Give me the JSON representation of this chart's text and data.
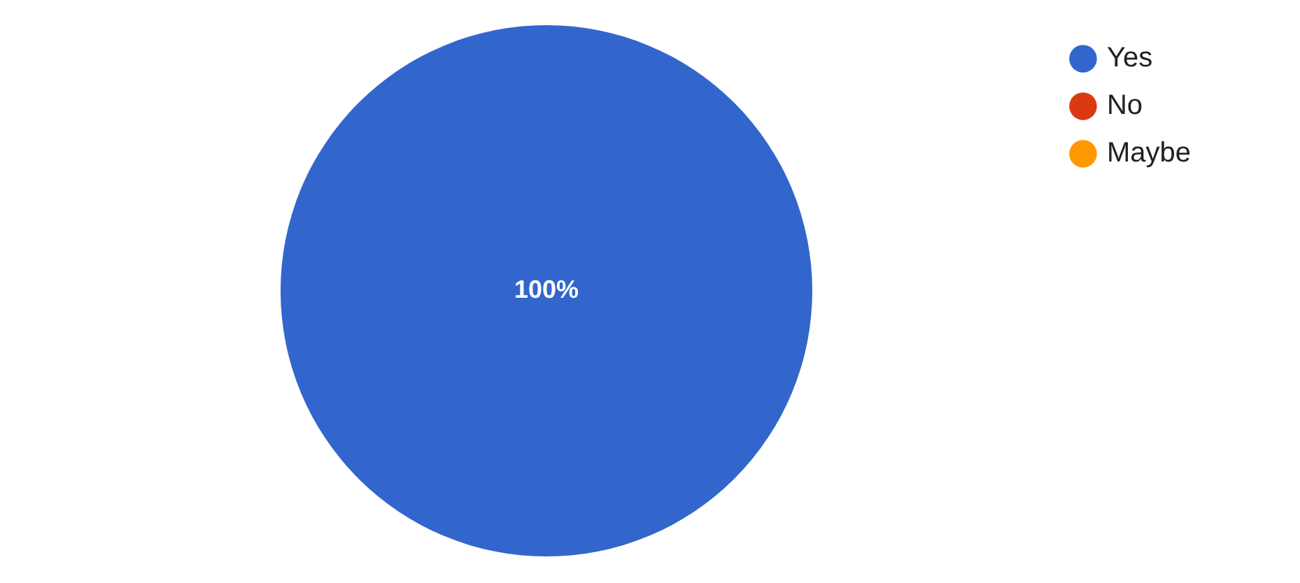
{
  "chart_data": {
    "type": "pie",
    "categories": [
      "Yes",
      "No",
      "Maybe"
    ],
    "values": [
      100,
      0,
      0
    ],
    "colors": [
      "#3366cc",
      "#dc3912",
      "#ff9900"
    ],
    "value_labels": [
      "100%",
      null,
      null
    ],
    "legend": "top right"
  }
}
